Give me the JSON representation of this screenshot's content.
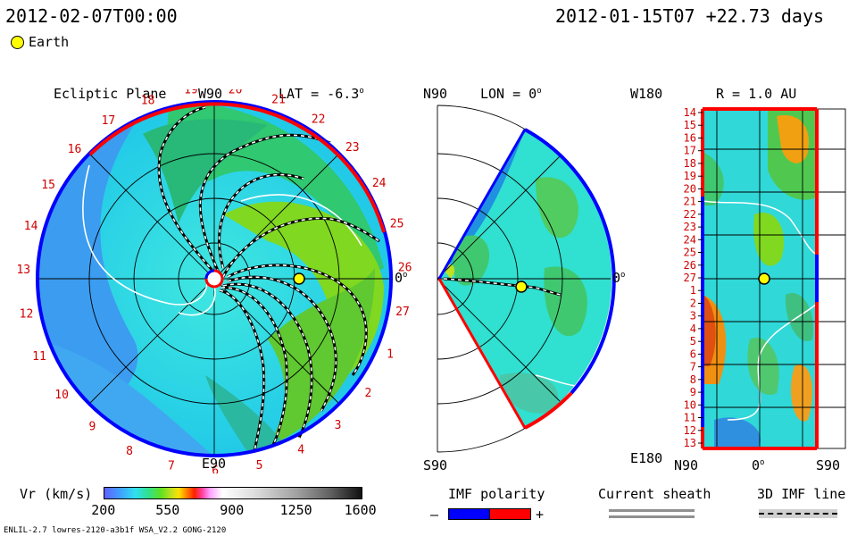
{
  "header": {
    "frame_time": "2012-02-07T00:00",
    "run_start": "2012-01-15T07",
    "elapsed": "+22.73 days"
  },
  "legend": {
    "earth_label": "Earth",
    "earth_color": "#ffff00"
  },
  "panels": {
    "ecliptic": {
      "title": "Ecliptic Plane",
      "lat_label": "LAT = -6.3",
      "top_label": "W90",
      "bottom_label": "E90",
      "right_label": "0",
      "carrington_labels": [
        "19",
        "20",
        "21",
        "22",
        "23",
        "24",
        "25",
        "26",
        "27",
        "1",
        "2",
        "3",
        "4",
        "5",
        "6",
        "7",
        "8",
        "9",
        "10",
        "11",
        "12",
        "13",
        "14",
        "15",
        "16",
        "17",
        "18"
      ]
    },
    "meridional": {
      "top_label": "N90",
      "lon_label": "LON = 0",
      "bottom_label": "S90",
      "right_label": "0"
    },
    "radial": {
      "top_left_label": "W180",
      "r_label": "R = 1.0 AU",
      "bottom_left_label": "E180",
      "x_labels": [
        "N90",
        "0",
        "S90"
      ],
      "y_labels": [
        "14",
        "15",
        "16",
        "17",
        "18",
        "19",
        "20",
        "21",
        "22",
        "23",
        "24",
        "25",
        "26",
        "27",
        "1",
        "2",
        "3",
        "4",
        "5",
        "6",
        "7",
        "8",
        "9",
        "10",
        "11",
        "12",
        "13"
      ]
    }
  },
  "colorbar": {
    "label": "Vr (km/s)",
    "ticks": [
      "200",
      "550",
      "900",
      "1250",
      "1600"
    ],
    "range": [
      200,
      1600
    ]
  },
  "imf_polarity": {
    "label": "IMF polarity",
    "minus": "–",
    "plus": "+",
    "neg_color": "#0000ff",
    "pos_color": "#ff0000"
  },
  "current_sheath": {
    "label": "Current sheath"
  },
  "imf_line": {
    "label": "3D IMF line"
  },
  "footer": {
    "model_info": "ENLIL-2.7 lowres-2120-a3b1f WSA_V2.2 GONG-2120"
  }
}
